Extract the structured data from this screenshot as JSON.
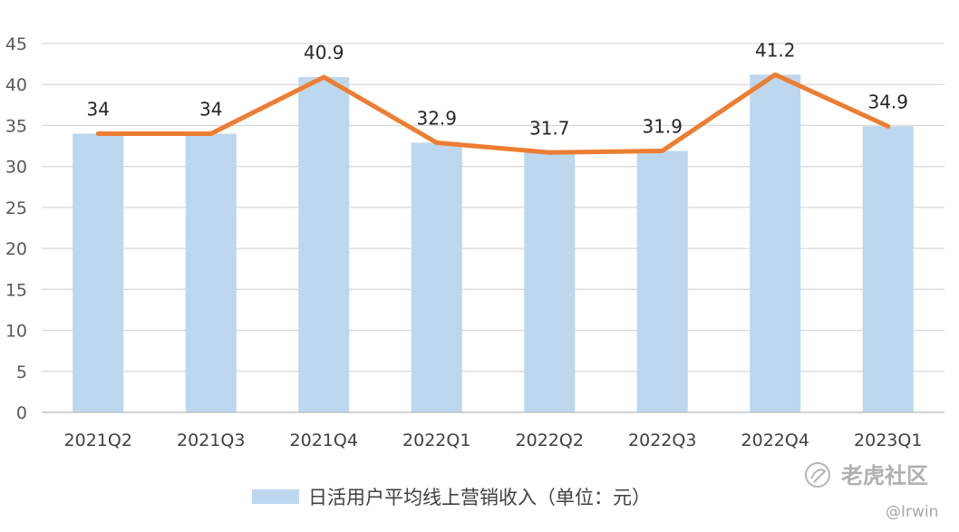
{
  "chart_data": {
    "type": "bar",
    "categories": [
      "2021Q2",
      "2021Q3",
      "2021Q4",
      "2022Q1",
      "2022Q2",
      "2022Q3",
      "2022Q4",
      "2023Q1"
    ],
    "series": [
      {
        "name": "日活用户平均线上营销收入（单位：元）",
        "type": "bar",
        "values": [
          34,
          34,
          40.9,
          32.9,
          31.7,
          31.9,
          41.2,
          34.9
        ]
      },
      {
        "type": "line",
        "values": [
          34,
          34,
          40.9,
          32.9,
          31.7,
          31.9,
          41.2,
          34.9
        ]
      }
    ],
    "data_labels": [
      "34",
      "34",
      "40.9",
      "32.9",
      "31.7",
      "31.9",
      "41.2",
      "34.9"
    ],
    "ylim": [
      0,
      45
    ],
    "yticks": [
      0,
      5,
      10,
      15,
      20,
      25,
      30,
      35,
      40,
      45
    ],
    "grid": true,
    "legend_position": "bottom",
    "colors": {
      "bar": "#bdd7ee",
      "line": "#ed7d31",
      "grid": "#d9d9d9"
    }
  },
  "watermark": {
    "brand": "老虎社区",
    "user": "@Irwin",
    "icon": "tiger-logo-icon"
  }
}
